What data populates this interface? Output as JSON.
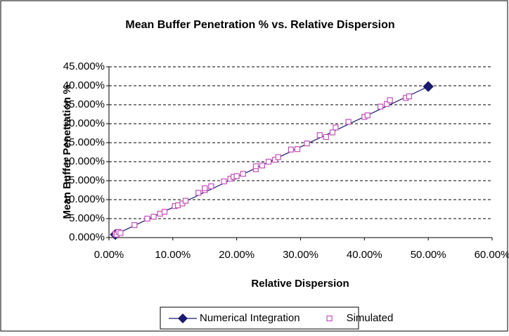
{
  "chart_data": {
    "type": "scatter",
    "title": "Mean Buffer Penetration % vs. Relative Dispersion",
    "x_label": "Relative Dispersion",
    "y_label": "Mean Buffer Penetration %",
    "xlim": [
      0,
      60
    ],
    "ylim": [
      0,
      45
    ],
    "xticks": [
      {
        "value": 0,
        "label": "0.00%"
      },
      {
        "value": 10,
        "label": "10.00%"
      },
      {
        "value": 20,
        "label": "20.00%"
      },
      {
        "value": 30,
        "label": "30.00%"
      },
      {
        "value": 40,
        "label": "40.00%"
      },
      {
        "value": 50,
        "label": "50.00%"
      },
      {
        "value": 60,
        "label": "60.00%"
      }
    ],
    "yticks": [
      {
        "value": 0,
        "label": "0.000%"
      },
      {
        "value": 5,
        "label": "5.000%"
      },
      {
        "value": 10,
        "label": "10.000%"
      },
      {
        "value": 15,
        "label": "15.000%"
      },
      {
        "value": 20,
        "label": "20.000%"
      },
      {
        "value": 25,
        "label": "25.000%"
      },
      {
        "value": 30,
        "label": "30.000%"
      },
      {
        "value": 35,
        "label": "35.000%"
      },
      {
        "value": 40,
        "label": "40.000%"
      },
      {
        "value": 45,
        "label": "45.000%"
      }
    ],
    "grid": true,
    "legend": "bottom",
    "series": [
      {
        "name": "Numerical Integration",
        "color": "#1a1a6e",
        "marker": "diamond",
        "line": true,
        "x": [
          1,
          50
        ],
        "values": [
          0.8,
          39.8
        ]
      },
      {
        "name": "Simulated",
        "color": "#c050b8",
        "marker": "square",
        "line": false,
        "x": [
          1,
          1.2,
          1.5,
          1.8,
          4,
          6,
          7,
          8,
          8.7,
          10.3,
          10.8,
          11.5,
          12,
          14,
          15,
          15,
          16,
          18,
          19,
          19.5,
          20,
          21,
          23,
          23,
          24,
          25,
          26,
          26.5,
          28.5,
          29.5,
          31,
          33,
          34,
          35,
          35.5,
          37.5,
          40,
          40.5,
          42.5,
          43.5,
          44,
          46.5,
          47
        ],
        "values": [
          1,
          0.8,
          1.5,
          1.2,
          3.3,
          5,
          5.5,
          6.3,
          6.8,
          8.3,
          8.5,
          9,
          9.7,
          11.8,
          12.5,
          13,
          13.5,
          14.8,
          15.5,
          16,
          16.2,
          16.8,
          18,
          18.8,
          19,
          20,
          20.5,
          21.2,
          23.2,
          23.3,
          24.8,
          27,
          26.5,
          27.7,
          29,
          30.5,
          31.8,
          32.2,
          34.5,
          35.2,
          36.2,
          36.8,
          37.2
        ]
      }
    ]
  }
}
